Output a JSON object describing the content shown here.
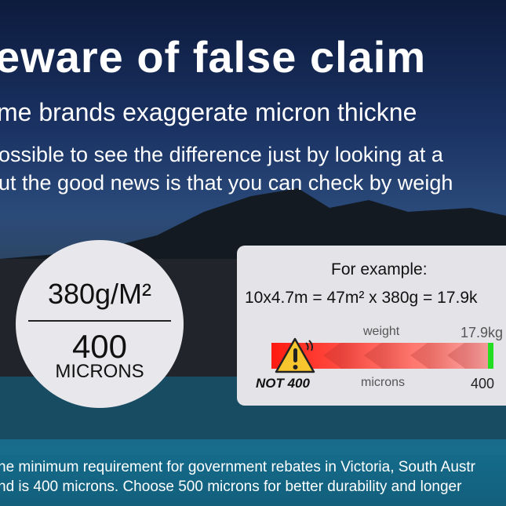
{
  "headline": "eware of false claim",
  "subheadline": "me brands exaggerate micron thickne",
  "body_lines": [
    "ossible to see the difference just by looking at a",
    "ut the good news is that you can check by weigh"
  ],
  "badge": {
    "weight": "380g/M²",
    "microns_value": "400",
    "microns_label": "MICRONS"
  },
  "example": {
    "title": "For example:",
    "formula": "10x4.7m = 47m² x 380g = 17.9k",
    "weight_label": "weight",
    "weight_value": "17.9kg",
    "microns_label": "microns",
    "microns_value": "400",
    "warning_text": "NOT 400",
    "warning_icon": "warning-triangle-icon",
    "bar_colors": {
      "start": "#ff1a10",
      "end": "#f6a5a5",
      "marker": "#22dd22"
    }
  },
  "footer_lines": [
    "he minimum requirement for government rebates in Victoria, South Austr",
    "nd is 400 microns. Choose 500 microns for better durability and longer"
  ]
}
